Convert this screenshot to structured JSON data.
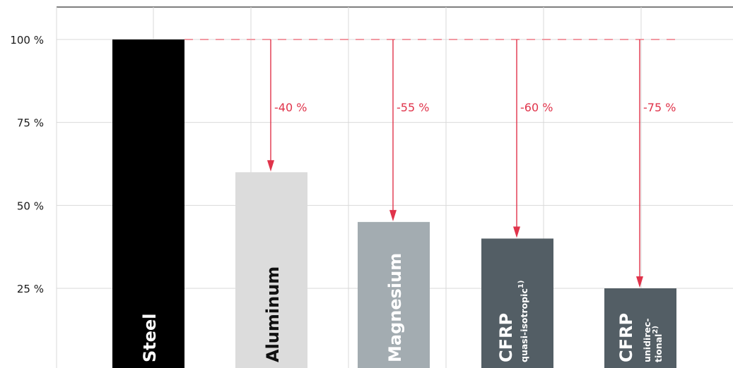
{
  "chart_data": {
    "type": "bar",
    "categories": [
      {
        "label": "Steel",
        "sublabel": "",
        "sup": ""
      },
      {
        "label": "Aluminum",
        "sublabel": "",
        "sup": ""
      },
      {
        "label": "Magnesium",
        "sublabel": "",
        "sup": ""
      },
      {
        "label": "CFRP",
        "sublabel": "quasi-isotropic",
        "sup": "1)"
      },
      {
        "label": "CFRP",
        "sublabel": "unidirec-|tional",
        "sup": "2)"
      }
    ],
    "values": [
      100,
      60,
      45,
      40,
      25
    ],
    "reductions": [
      "",
      "-40 %",
      "-55 %",
      "-60 %",
      "-75 %"
    ],
    "y_ticks": [
      "100 %",
      "75 %",
      "50 %",
      "25 %"
    ],
    "y_tick_values": [
      100,
      75,
      50,
      25
    ],
    "ylim": [
      0,
      110
    ],
    "title": "",
    "xlabel": "",
    "ylabel": "",
    "grid": true,
    "colors": {
      "bars": [
        "#000000",
        "#dcdcdc",
        "#a3acb1",
        "#535e65",
        "#535e65"
      ],
      "bar_text": "#ffffff",
      "bar_text_light": "#111111",
      "annotation": "#e0334a",
      "reference_line": "#f29aa3",
      "grid": "#d9d9d9",
      "axis_text": "#1a1a1a"
    }
  }
}
